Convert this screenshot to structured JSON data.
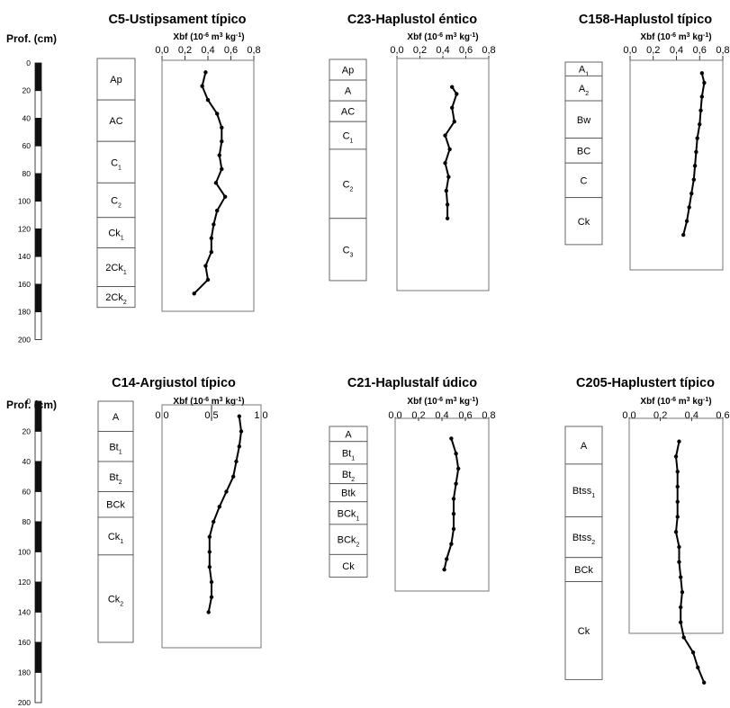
{
  "figure": {
    "depth_axis_label": "Prof. (cm)",
    "depth_ticks": [
      "0",
      "20",
      "40",
      "60",
      "80",
      "100",
      "120",
      "140",
      "160",
      "180",
      "200"
    ]
  },
  "chart_data": [
    {
      "type": "line",
      "title": "C5-Ustipsament típico",
      "xlabel": "Xbf (10-6 m3 kg-1)",
      "xlabel_parts": {
        "base": "Xbf (10",
        "exp1": "-6",
        "mid": " m",
        "exp2": "3",
        "mid2": " kg",
        "exp3": "-1",
        "end": ")"
      },
      "ylabel": "Prof. (cm)",
      "xlim": [
        0,
        0.8
      ],
      "x_ticks": [
        "0,0",
        "0,2",
        "0,4",
        "0,6",
        "0,8"
      ],
      "ylim": [
        0,
        180
      ],
      "horizons": [
        {
          "label": "Ap",
          "sub": "",
          "top": 0,
          "bottom": 30
        },
        {
          "label": "AC",
          "sub": "",
          "top": 30,
          "bottom": 60
        },
        {
          "label": "C",
          "sub": "1",
          "top": 60,
          "bottom": 90
        },
        {
          "label": "C",
          "sub": "2",
          "top": 90,
          "bottom": 115
        },
        {
          "label": "Ck",
          "sub": "1",
          "top": 115,
          "bottom": 137
        },
        {
          "label": "2Ck",
          "sub": "1",
          "top": 137,
          "bottom": 165
        },
        {
          "label": "2Ck",
          "sub": "2",
          "top": 165,
          "bottom": 180
        }
      ],
      "series": [
        {
          "values": [
            [
              0.38,
              10
            ],
            [
              0.35,
              20
            ],
            [
              0.4,
              30
            ],
            [
              0.48,
              40
            ],
            [
              0.52,
              50
            ],
            [
              0.52,
              60
            ],
            [
              0.5,
              70
            ],
            [
              0.52,
              80
            ],
            [
              0.47,
              90
            ],
            [
              0.55,
              100
            ],
            [
              0.48,
              110
            ],
            [
              0.45,
              120
            ],
            [
              0.43,
              130
            ],
            [
              0.43,
              140
            ],
            [
              0.38,
              150
            ],
            [
              0.4,
              160
            ],
            [
              0.28,
              170
            ]
          ]
        }
      ]
    },
    {
      "type": "line",
      "title": "C23-Haplustol éntico",
      "xlabel": "Xbf (10-6 m3 kg-1)",
      "xlabel_parts": {
        "base": "Xbf (10",
        "exp1": "-6",
        "mid": " m",
        "exp2": "3",
        "mid2": " kg",
        "exp3": "-1",
        "end": ")"
      },
      "xlim": [
        0,
        0.8
      ],
      "x_ticks": [
        "0,0",
        "0,2",
        "0,4",
        "0,6",
        "0,8"
      ],
      "ylim": [
        0,
        160
      ],
      "horizons": [
        {
          "label": "Ap",
          "sub": "",
          "top": 0,
          "bottom": 15
        },
        {
          "label": "A",
          "sub": "",
          "top": 15,
          "bottom": 30
        },
        {
          "label": "AC",
          "sub": "",
          "top": 30,
          "bottom": 45
        },
        {
          "label": "C",
          "sub": "1",
          "top": 45,
          "bottom": 65
        },
        {
          "label": "C",
          "sub": "2",
          "top": 65,
          "bottom": 115
        },
        {
          "label": "C",
          "sub": "3",
          "top": 115,
          "bottom": 160
        }
      ],
      "series": [
        {
          "values": [
            [
              0.48,
              20
            ],
            [
              0.52,
              25
            ],
            [
              0.48,
              35
            ],
            [
              0.5,
              45
            ],
            [
              0.42,
              55
            ],
            [
              0.46,
              65
            ],
            [
              0.42,
              75
            ],
            [
              0.45,
              85
            ],
            [
              0.43,
              95
            ],
            [
              0.44,
              105
            ],
            [
              0.44,
              115
            ]
          ]
        }
      ]
    },
    {
      "type": "line",
      "title": "C158-Haplustol típico",
      "xlabel": "Xbf (10-6 m3 kg-1)",
      "xlabel_parts": {
        "base": "Xbf (10",
        "exp1": "-6",
        "mid": " m",
        "exp2": "3",
        "mid2": " kg",
        "exp3": "-1",
        "end": ")"
      },
      "xlim": [
        0,
        0.8
      ],
      "x_ticks": [
        "0,0",
        "0,2",
        "0,4",
        "0,6",
        "0,8"
      ],
      "ylim": [
        0,
        145
      ],
      "horizons": [
        {
          "label": "A",
          "sub": "1",
          "top": 0,
          "bottom": 10
        },
        {
          "label": "A",
          "sub": "2",
          "top": 10,
          "bottom": 28
        },
        {
          "label": "Bw",
          "sub": "",
          "top": 28,
          "bottom": 55
        },
        {
          "label": "BC",
          "sub": "",
          "top": 55,
          "bottom": 73
        },
        {
          "label": "C",
          "sub": "",
          "top": 73,
          "bottom": 98
        },
        {
          "label": "Ck",
          "sub": "",
          "top": 98,
          "bottom": 132
        }
      ],
      "series": [
        {
          "values": [
            [
              0.62,
              8
            ],
            [
              0.64,
              15
            ],
            [
              0.62,
              25
            ],
            [
              0.61,
              35
            ],
            [
              0.6,
              45
            ],
            [
              0.58,
              55
            ],
            [
              0.57,
              65
            ],
            [
              0.56,
              75
            ],
            [
              0.55,
              85
            ],
            [
              0.53,
              95
            ],
            [
              0.51,
              105
            ],
            [
              0.49,
              115
            ],
            [
              0.46,
              125
            ]
          ]
        }
      ]
    },
    {
      "type": "line",
      "title": "C14-Argiustol típico",
      "xlabel": "Xbf (10-6 m3 kg-1)",
      "xlabel_parts": {
        "base": "Xbf (10",
        "exp1": "-6",
        "mid": " m",
        "exp2": "3",
        "mid2": " kg",
        "exp3": "-1",
        "end": ")"
      },
      "ylabel": "Prof. (cm)",
      "xlim": [
        0,
        1.0
      ],
      "x_ticks": [
        "0,0",
        "0,5",
        "1,0"
      ],
      "ylim": [
        0,
        160
      ],
      "horizons": [
        {
          "label": "A",
          "sub": "",
          "top": 0,
          "bottom": 20
        },
        {
          "label": "Bt",
          "sub": "1",
          "top": 20,
          "bottom": 40
        },
        {
          "label": "Bt",
          "sub": "2",
          "top": 40,
          "bottom": 60
        },
        {
          "label": "BCk",
          "sub": "",
          "top": 60,
          "bottom": 77
        },
        {
          "label": "Ck",
          "sub": "1",
          "top": 77,
          "bottom": 102
        },
        {
          "label": "Ck",
          "sub": "2",
          "top": 102,
          "bottom": 160
        }
      ],
      "series": [
        {
          "values": [
            [
              0.78,
              10
            ],
            [
              0.8,
              20
            ],
            [
              0.78,
              30
            ],
            [
              0.75,
              40
            ],
            [
              0.72,
              50
            ],
            [
              0.65,
              60
            ],
            [
              0.58,
              70
            ],
            [
              0.52,
              80
            ],
            [
              0.48,
              90
            ],
            [
              0.48,
              100
            ],
            [
              0.48,
              110
            ],
            [
              0.5,
              120
            ],
            [
              0.5,
              130
            ],
            [
              0.47,
              140
            ]
          ]
        }
      ]
    },
    {
      "type": "line",
      "title": "C21-Haplustalf údico",
      "xlabel": "Xbf (10-6 m3 kg-1)",
      "xlabel_parts": {
        "base": "Xbf (10",
        "exp1": "-6",
        "mid": " m",
        "exp2": "3",
        "mid2": " kg",
        "exp3": "-1",
        "end": ")"
      },
      "xlim": [
        0,
        0.8
      ],
      "x_ticks": [
        "0,0",
        "0,2",
        "0,4",
        "0,6",
        "0,8"
      ],
      "ylim": [
        0,
        115
      ],
      "horizons": [
        {
          "label": "A",
          "sub": "",
          "top": 0,
          "bottom": 10
        },
        {
          "label": "Bt",
          "sub": "1",
          "top": 10,
          "bottom": 25
        },
        {
          "label": "Bt",
          "sub": "2",
          "top": 25,
          "bottom": 38
        },
        {
          "label": "Btk",
          "sub": "",
          "top": 38,
          "bottom": 50
        },
        {
          "label": "BCk",
          "sub": "1",
          "top": 50,
          "bottom": 65
        },
        {
          "label": "BCk",
          "sub": "2",
          "top": 65,
          "bottom": 85
        },
        {
          "label": "Ck",
          "sub": "",
          "top": 85,
          "bottom": 100
        }
      ],
      "series": [
        {
          "values": [
            [
              0.48,
              8
            ],
            [
              0.52,
              18
            ],
            [
              0.54,
              28
            ],
            [
              0.52,
              38
            ],
            [
              0.5,
              48
            ],
            [
              0.5,
              58
            ],
            [
              0.5,
              68
            ],
            [
              0.48,
              78
            ],
            [
              0.44,
              88
            ],
            [
              0.42,
              95
            ]
          ]
        }
      ]
    },
    {
      "type": "line",
      "title": "C205-Haplustert típico",
      "xlabel": "Xbf (10-6 m3 kg-1)",
      "xlabel_parts": {
        "base": "Xbf (10",
        "exp1": "-6",
        "mid": " m",
        "exp2": "3",
        "mid2": " kg",
        "exp3": "-1",
        "end": ")"
      },
      "xlim": [
        0,
        0.6
      ],
      "x_ticks": [
        "0,0",
        "0,2",
        "0,4",
        "0,6"
      ],
      "ylim": [
        0,
        190
      ],
      "horizons": [
        {
          "label": "A",
          "sub": "",
          "top": 0,
          "bottom": 25
        },
        {
          "label": "Btss",
          "sub": "1",
          "top": 25,
          "bottom": 60
        },
        {
          "label": "Btss",
          "sub": "2",
          "top": 60,
          "bottom": 87
        },
        {
          "label": "BCk",
          "sub": "",
          "top": 87,
          "bottom": 103
        },
        {
          "label": "Ck",
          "sub": "",
          "top": 103,
          "bottom": 168
        }
      ],
      "series": [
        {
          "values": [
            [
              0.32,
              10
            ],
            [
              0.3,
              20
            ],
            [
              0.31,
              30
            ],
            [
              0.31,
              40
            ],
            [
              0.31,
              50
            ],
            [
              0.31,
              60
            ],
            [
              0.3,
              70
            ],
            [
              0.32,
              80
            ],
            [
              0.32,
              90
            ],
            [
              0.33,
              100
            ],
            [
              0.34,
              110
            ],
            [
              0.33,
              120
            ],
            [
              0.33,
              130
            ],
            [
              0.35,
              140
            ],
            [
              0.41,
              150
            ],
            [
              0.44,
              160
            ],
            [
              0.48,
              170
            ]
          ]
        }
      ]
    }
  ]
}
